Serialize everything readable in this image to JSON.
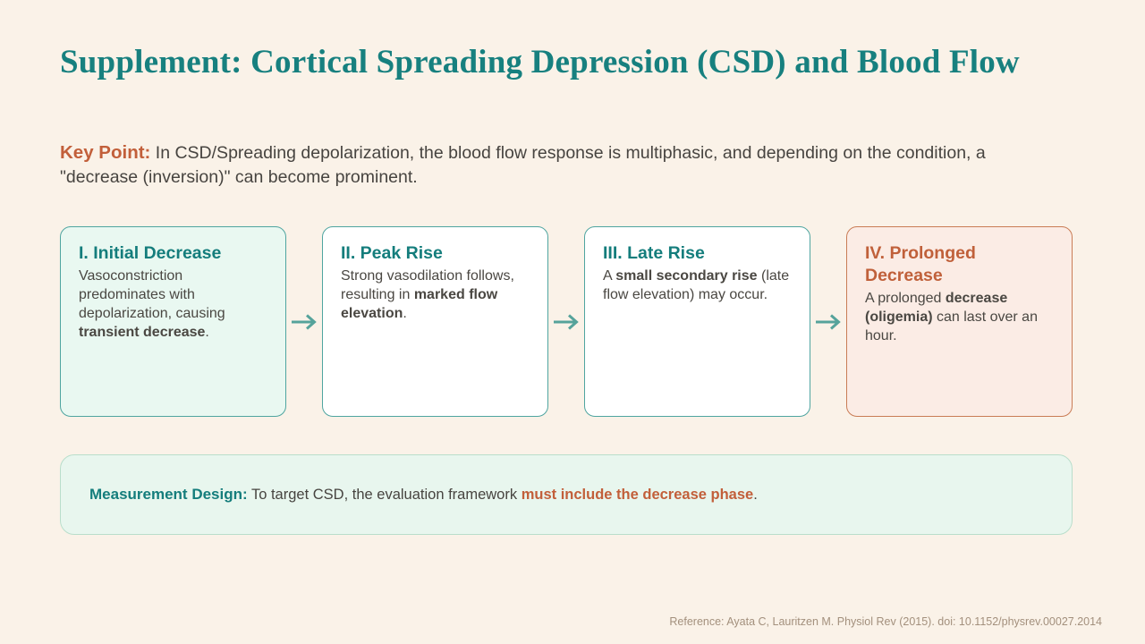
{
  "title": "Supplement: Cortical Spreading Depression (CSD) and Blood Flow",
  "key_point": {
    "label": "Key Point:",
    "segments": [
      {
        "t": " In CSD/Spreading depolarization, the blood flow response is multiphasic, and depending on the condition, a \"decrease (inversion)\" can become prominent."
      }
    ]
  },
  "cards": [
    {
      "heading": "I. Initial Decrease",
      "body": [
        {
          "t": "Vasoconstriction predominates with depolarization, causing "
        },
        {
          "t": "transient decrease",
          "b": true
        },
        {
          "t": "."
        }
      ]
    },
    {
      "heading": "II. Peak Rise",
      "body": [
        {
          "t": "Strong vasodilation follows, resulting in "
        },
        {
          "t": "marked flow elevation",
          "b": true
        },
        {
          "t": "."
        }
      ]
    },
    {
      "heading": "III. Late Rise",
      "body": [
        {
          "t": "A "
        },
        {
          "t": "small secondary rise",
          "b": true
        },
        {
          "t": " (late flow elevation) may occur."
        }
      ]
    },
    {
      "heading": "IV. Prolonged Decrease",
      "body": [
        {
          "t": "A prolonged "
        },
        {
          "t": "decrease (oligemia)",
          "b": true
        },
        {
          "t": " can last over an hour."
        }
      ]
    }
  ],
  "measurement": {
    "label": "Measurement Design:",
    "segments": [
      {
        "t": " To target CSD, the evaluation framework "
      },
      {
        "t": "must include the decrease phase",
        "b": true,
        "c": "#C25F3A"
      },
      {
        "t": "."
      }
    ]
  },
  "reference": "Reference: Ayata C, Lauritzen M. Physiol Rev (2015). doi: 10.1152/physrev.00027.2014",
  "colors": {
    "background": "#FAF2E8",
    "title_teal": "#17807F",
    "accent_orange": "#C25F3A",
    "card_border_teal": "#4FA5A0",
    "card_border_orange": "#C97C55",
    "card_mint_bg": "#E9F8F1",
    "card_peach_bg": "#FBECE5",
    "note_bg": "#E8F6EE",
    "arrow_teal": "#55A39B",
    "reference_gray": "#A3907D"
  },
  "icons": {
    "arrow_right": "arrow-right-icon"
  }
}
